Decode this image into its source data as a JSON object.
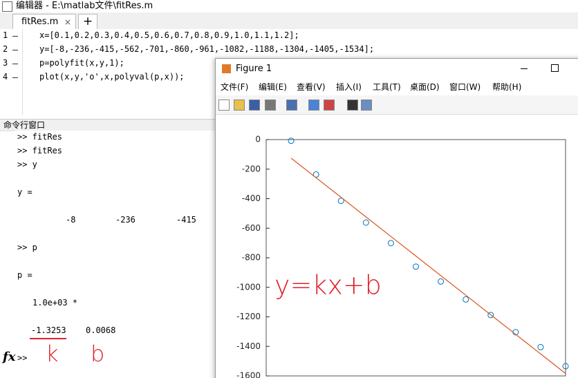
{
  "window_title": "编辑器 - E:\\matlab文件\\fitRes.m",
  "tabs": [
    "fitRes.m"
  ],
  "new_tab": "+",
  "editor": {
    "lines": [
      {
        "number": 1,
        "code": "x=[0.1,0.2,0.3,0.4,0.5,0.6,0.7,0.8,0.9,1.0,1.1,1.2];"
      },
      {
        "number": 2,
        "code": "y=[-8,-236,-415,-562,-701,-860,-961,-1082,-1188,-1304,-1405,-1534];"
      },
      {
        "number": 3,
        "code": "p=polyfit(x,y,1);"
      },
      {
        "number": 4,
        "code": "plot(x,y,'o',x,polyval(p,x));"
      }
    ]
  },
  "command_window": {
    "title": "命令行窗口",
    "lines": [
      [
        ">> fitRes"
      ],
      [
        ">> fitRes"
      ],
      [
        ">> y"
      ],
      [
        "y ="
      ],
      [
        "-8",
        "-236",
        "-415"
      ],
      [
        ">> p"
      ],
      [
        "p ="
      ],
      [
        "1.0e+03 *"
      ],
      [
        "-1.3253",
        "0.0068"
      ]
    ],
    "fx": "fx",
    "prompt": ">>",
    "notes": [
      "k",
      "b"
    ]
  },
  "figure": {
    "title": "Figure 1",
    "menu": [
      "文件(F)",
      "编辑(E)",
      "查看(V)",
      "插入(I)",
      "工具(T)",
      "桌面(D)",
      "窗口(W)",
      "帮助(H)"
    ]
  },
  "chart_data": {
    "type": "scatter",
    "x": [
      0.1,
      0.2,
      0.3,
      0.4,
      0.5,
      0.6,
      0.7,
      0.8,
      0.9,
      1.0,
      1.1,
      1.2
    ],
    "series": [
      {
        "color": "#0072bd",
        "marker": "o",
        "values": [
          -8,
          -236,
          -415,
          -562,
          -701,
          -860,
          -961,
          -1082,
          -1188,
          -1304,
          -1405,
          -1534
        ]
      },
      {
        "color": "#d95319",
        "marker": "line",
        "values": [
          -125.73,
          -258.26,
          -390.79,
          -523.32,
          -655.85,
          -788.38,
          -920.91,
          -1053.44,
          -1185.97,
          -1318.5,
          -1451.03,
          -1583.56
        ]
      }
    ],
    "xlim": [
      0,
      1.2
    ],
    "ylim": [
      -1600,
      0
    ],
    "yticks": [
      0,
      -200,
      -400,
      -600,
      -800,
      -1000,
      -1200,
      -1400,
      -1600
    ],
    "annotations": [
      "y=kx+b"
    ]
  }
}
